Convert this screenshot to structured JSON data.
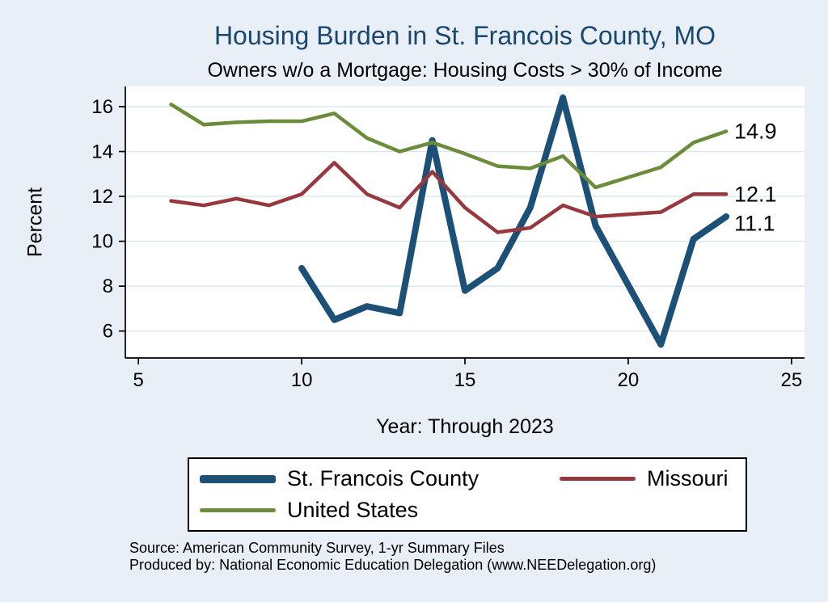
{
  "chart_data": {
    "type": "line",
    "title": "Housing Burden in St. Francois County, MO",
    "subtitle": "Owners w/o a Mortgage: Housing Costs > 30% of Income",
    "xlabel": "Year: Through 2023",
    "ylabel": "Percent",
    "xlim": [
      4.6,
      25.4
    ],
    "ylim": [
      4.8,
      16.9
    ],
    "x_ticks": [
      5,
      10,
      15,
      20,
      25
    ],
    "y_ticks": [
      6,
      8,
      10,
      12,
      14,
      16
    ],
    "grid": "horizontal",
    "legend_position": "bottom",
    "series": [
      {
        "name": "St. Francois County",
        "color_key": "county",
        "thick": true,
        "end_label": "11.1",
        "x": [
          10,
          11,
          12,
          13,
          14,
          15,
          16,
          17,
          18,
          19,
          21,
          22,
          23
        ],
        "values": [
          8.8,
          6.5,
          7.1,
          6.8,
          14.5,
          7.8,
          8.8,
          11.5,
          16.4,
          10.7,
          5.4,
          10.1,
          11.1
        ]
      },
      {
        "name": "Missouri",
        "color_key": "missouri",
        "thick": false,
        "end_label": "12.1",
        "x": [
          6,
          7,
          8,
          9,
          10,
          11,
          12,
          13,
          14,
          15,
          16,
          17,
          18,
          19,
          21,
          22,
          23
        ],
        "values": [
          11.8,
          11.6,
          11.9,
          11.6,
          12.1,
          13.5,
          12.1,
          11.5,
          13.1,
          11.5,
          10.4,
          10.6,
          11.6,
          11.1,
          11.3,
          12.1,
          12.1
        ]
      },
      {
        "name": "United States",
        "color_key": "us",
        "thick": false,
        "end_label": "14.9",
        "x": [
          6,
          7,
          8,
          9,
          10,
          11,
          12,
          13,
          14,
          15,
          16,
          17,
          18,
          19,
          21,
          22,
          23
        ],
        "values": [
          16.1,
          15.2,
          15.3,
          15.35,
          15.35,
          15.7,
          14.6,
          14.0,
          14.4,
          13.9,
          13.35,
          13.25,
          13.8,
          12.4,
          13.3,
          14.4,
          14.9
        ]
      }
    ]
  },
  "legend": {
    "items": [
      {
        "label": "St. Francois County",
        "color_key": "county",
        "thick": true
      },
      {
        "label": "Missouri",
        "color_key": "missouri",
        "thick": false
      },
      {
        "label": "United States",
        "color_key": "us",
        "thick": false
      }
    ]
  },
  "notes": {
    "source": "Source: American Community Survey, 1-yr Summary Files",
    "produced_by": "Produced by: National Economic Education Delegation (www.NEEDelegation.org)"
  },
  "colors": {
    "background": "#e9eff7",
    "title": "#1a476f",
    "county": "#1d5076",
    "missouri": "#97383f",
    "us": "#6b8c3a",
    "gridline": "#dae7f1",
    "axis": "#000000",
    "plot_background": "#ffffff"
  }
}
